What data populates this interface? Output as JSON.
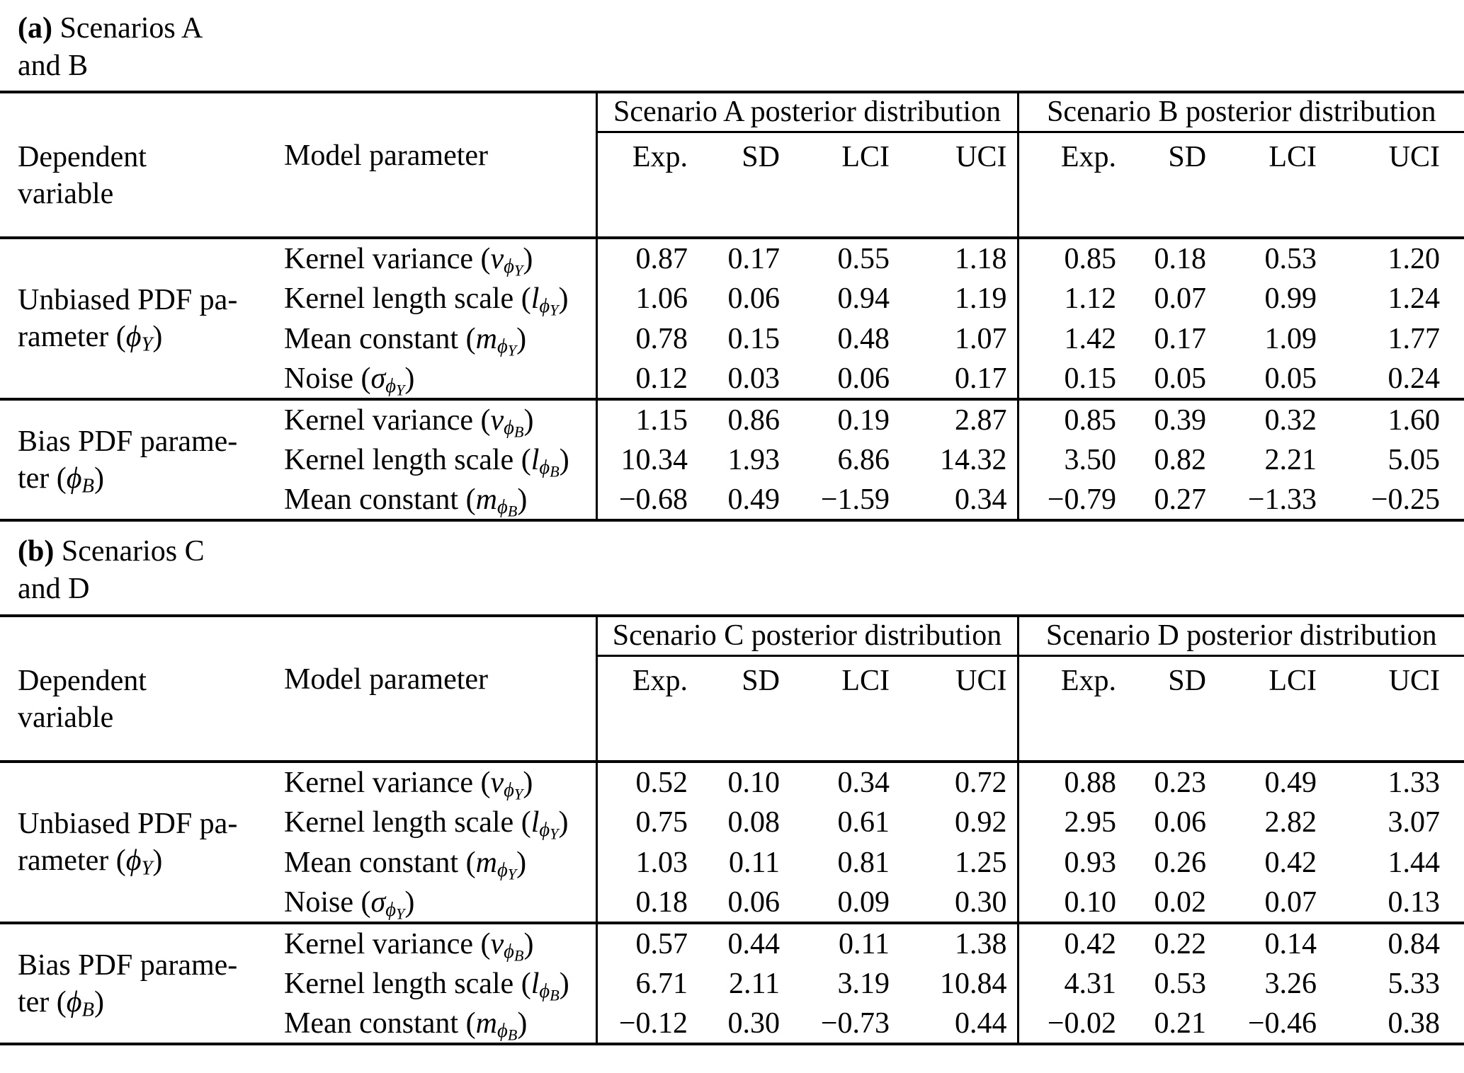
{
  "captions": {
    "a": {
      "tag": "(a)",
      "rest": " Scenarios A",
      "line2": "and B"
    },
    "b": {
      "tag": "(b)",
      "rest": " Scenarios C",
      "line2": "and D"
    }
  },
  "headers": {
    "dep_line1": "Dependent",
    "dep_line2": "variable",
    "model": "Model parameter",
    "cols": [
      "Exp.",
      "SD",
      "LCI",
      "UCI"
    ]
  },
  "groups": {
    "a": [
      "Scenario A posterior distribution",
      "Scenario B posterior distribution"
    ],
    "b": [
      "Scenario C posterior distribution",
      "Scenario D posterior distribution"
    ]
  },
  "labels": {
    "block1": {
      "dep_line1": "Unbiased PDF pa-",
      "dep_pre": "rameter (",
      "dep_phi": "ϕ",
      "dep_sub": "Y",
      "dep_post": ")",
      "rows": [
        {
          "pre": "Kernel variance (",
          "sym": "v",
          "phi": "ϕ",
          "sub": "Y",
          "post": ")"
        },
        {
          "pre": "Kernel length scale (",
          "sym": "l",
          "phi": "ϕ",
          "sub": "Y",
          "post": ")"
        },
        {
          "pre": "Mean constant (",
          "sym": "m",
          "phi": "ϕ",
          "sub": "Y",
          "post": ")"
        },
        {
          "pre": "Noise (",
          "sym": "σ",
          "phi": "ϕ",
          "sub": "Y",
          "post": ")"
        }
      ]
    },
    "block2": {
      "dep_line1": "Bias PDF parame-",
      "dep_pre": "ter (",
      "dep_phi": "ϕ",
      "dep_sub": "B",
      "dep_post": ")",
      "rows": [
        {
          "pre": "Kernel variance (",
          "sym": "v",
          "phi": "ϕ",
          "sub": "B",
          "post": ")"
        },
        {
          "pre": "Kernel length scale (",
          "sym": "l",
          "phi": "ϕ",
          "sub": "B",
          "post": ")"
        },
        {
          "pre": "Mean constant (",
          "sym": "m",
          "phi": "ϕ",
          "sub": "B",
          "post": ")"
        }
      ]
    }
  },
  "data": {
    "a": {
      "block1": [
        {
          "L": [
            "0.87",
            "0.17",
            "0.55",
            "1.18"
          ],
          "R": [
            "0.85",
            "0.18",
            "0.53",
            "1.20"
          ]
        },
        {
          "L": [
            "1.06",
            "0.06",
            "0.94",
            "1.19"
          ],
          "R": [
            "1.12",
            "0.07",
            "0.99",
            "1.24"
          ]
        },
        {
          "L": [
            "0.78",
            "0.15",
            "0.48",
            "1.07"
          ],
          "R": [
            "1.42",
            "0.17",
            "1.09",
            "1.77"
          ]
        },
        {
          "L": [
            "0.12",
            "0.03",
            "0.06",
            "0.17"
          ],
          "R": [
            "0.15",
            "0.05",
            "0.05",
            "0.24"
          ]
        }
      ],
      "block2": [
        {
          "L": [
            "1.15",
            "0.86",
            "0.19",
            "2.87"
          ],
          "R": [
            "0.85",
            "0.39",
            "0.32",
            "1.60"
          ]
        },
        {
          "L": [
            "10.34",
            "1.93",
            "6.86",
            "14.32"
          ],
          "R": [
            "3.50",
            "0.82",
            "2.21",
            "5.05"
          ]
        },
        {
          "L": [
            "−0.68",
            "0.49",
            "−1.59",
            "0.34"
          ],
          "R": [
            "−0.79",
            "0.27",
            "−1.33",
            "−0.25"
          ]
        }
      ]
    },
    "b": {
      "block1": [
        {
          "L": [
            "0.52",
            "0.10",
            "0.34",
            "0.72"
          ],
          "R": [
            "0.88",
            "0.23",
            "0.49",
            "1.33"
          ]
        },
        {
          "L": [
            "0.75",
            "0.08",
            "0.61",
            "0.92"
          ],
          "R": [
            "2.95",
            "0.06",
            "2.82",
            "3.07"
          ]
        },
        {
          "L": [
            "1.03",
            "0.11",
            "0.81",
            "1.25"
          ],
          "R": [
            "0.93",
            "0.26",
            "0.42",
            "1.44"
          ]
        },
        {
          "L": [
            "0.18",
            "0.06",
            "0.09",
            "0.30"
          ],
          "R": [
            "0.10",
            "0.02",
            "0.07",
            "0.13"
          ]
        }
      ],
      "block2": [
        {
          "L": [
            "0.57",
            "0.44",
            "0.11",
            "1.38"
          ],
          "R": [
            "0.42",
            "0.22",
            "0.14",
            "0.84"
          ]
        },
        {
          "L": [
            "6.71",
            "2.11",
            "3.19",
            "10.84"
          ],
          "R": [
            "4.31",
            "0.53",
            "3.26",
            "5.33"
          ]
        },
        {
          "L": [
            "−0.12",
            "0.30",
            "−0.73",
            "0.44"
          ],
          "R": [
            "−0.02",
            "0.21",
            "−0.46",
            "0.38"
          ]
        }
      ]
    }
  }
}
